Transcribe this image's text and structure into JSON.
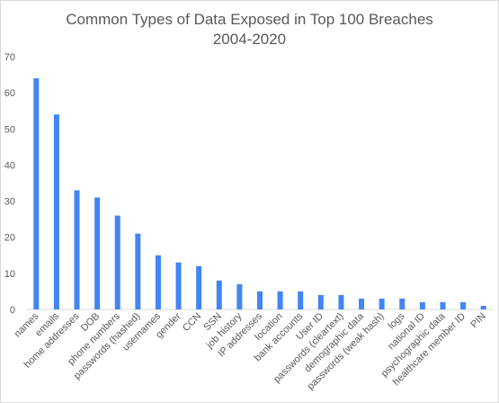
{
  "chart_data": {
    "type": "bar",
    "title": "Common Types of Data Exposed in Top 100 Breaches",
    "subtitle": "2004-2020",
    "xlabel": "",
    "ylabel": "",
    "ylim": [
      0,
      70
    ],
    "yticks": [
      0,
      10,
      20,
      30,
      40,
      50,
      60,
      70
    ],
    "grid": false,
    "legend": "none",
    "bar_color": "#4285f4",
    "categories": [
      "names",
      "emails",
      "home addresses",
      "DOB",
      "phone numbers",
      "passwords (hashed)",
      "usernames",
      "gender",
      "CCN",
      "SSN",
      "job history",
      "IP addresses",
      "location",
      "bank accounts",
      "User ID",
      "passwords (cleartext)",
      "demographic data",
      "passwords (weak hash)",
      "logs",
      "national ID",
      "psychographic data",
      "healthcare member ID",
      "PIN"
    ],
    "values": [
      64,
      54,
      33,
      31,
      26,
      21,
      15,
      13,
      12,
      8,
      7,
      5,
      5,
      5,
      4,
      4,
      3,
      3,
      3,
      2,
      2,
      2,
      1
    ]
  }
}
